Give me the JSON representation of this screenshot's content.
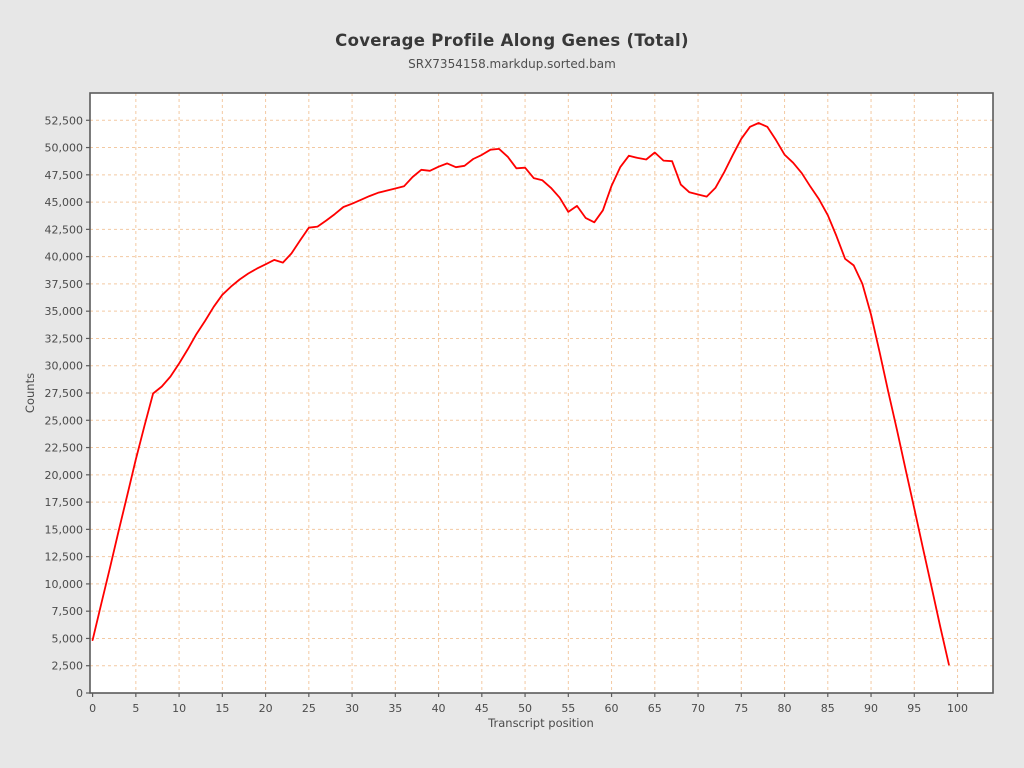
{
  "chart_data": {
    "type": "line",
    "title": "Coverage Profile Along Genes (Total)",
    "subtitle": "SRX7354158.markdup.sorted.bam",
    "xlabel": "Transcript position",
    "ylabel": "Counts",
    "legend": "none",
    "grid": {
      "style": "dashed",
      "color": "#f3c9a2"
    },
    "xlim": [
      -0.3,
      104.1
    ],
    "ylim": [
      0,
      55000
    ],
    "x_ticks": [
      0,
      5,
      10,
      15,
      20,
      25,
      30,
      35,
      40,
      45,
      50,
      55,
      60,
      65,
      70,
      75,
      80,
      85,
      90,
      95,
      100
    ],
    "y_ticks": [
      0,
      2500,
      5000,
      7500,
      10000,
      12500,
      15000,
      17500,
      20000,
      22500,
      25000,
      27500,
      30000,
      32500,
      35000,
      37500,
      40000,
      42500,
      45000,
      47500,
      50000,
      52500
    ],
    "x": [
      0,
      1,
      2,
      3,
      4,
      5,
      6,
      7,
      8,
      9,
      10,
      11,
      12,
      13,
      14,
      15,
      16,
      17,
      18,
      19,
      20,
      21,
      22,
      23,
      24,
      25,
      26,
      27,
      28,
      29,
      30,
      31,
      32,
      33,
      34,
      35,
      36,
      37,
      38,
      39,
      40,
      41,
      42,
      43,
      44,
      45,
      46,
      47,
      48,
      49,
      50,
      51,
      52,
      53,
      54,
      55,
      56,
      57,
      58,
      59,
      60,
      61,
      62,
      63,
      64,
      65,
      66,
      67,
      68,
      69,
      70,
      71,
      72,
      73,
      74,
      75,
      76,
      77,
      78,
      79,
      80,
      81,
      82,
      83,
      84,
      85,
      86,
      87,
      88,
      89,
      90,
      91,
      92,
      93,
      94,
      95,
      96,
      97,
      98,
      99
    ],
    "series": [
      {
        "name": "SRX7354158.markdup.sorted.bam",
        "color": "#ff0000",
        "values": [
          4850,
          8150,
          11450,
          14800,
          18100,
          21400,
          24500,
          27450,
          28100,
          29000,
          30200,
          31500,
          32900,
          34100,
          35400,
          36500,
          37250,
          37900,
          38450,
          38900,
          39300,
          39700,
          39450,
          40300,
          41500,
          42650,
          42750,
          43300,
          43900,
          44550,
          44850,
          45200,
          45550,
          45850,
          46050,
          46250,
          46450,
          47300,
          47960,
          47870,
          48240,
          48550,
          48200,
          48330,
          48950,
          49330,
          49800,
          49880,
          49150,
          48100,
          48150,
          47200,
          47000,
          46300,
          45400,
          44100,
          44650,
          43550,
          43150,
          44250,
          46500,
          48200,
          49250,
          49050,
          48900,
          49550,
          48800,
          48750,
          46600,
          45900,
          45700,
          45500,
          46300,
          47700,
          49300,
          50800,
          51900,
          52250,
          51900,
          50700,
          49350,
          48600,
          47650,
          46400,
          45250,
          43800,
          41900,
          39800,
          39200,
          37500,
          34700,
          31200,
          27600,
          24100,
          20500,
          16900,
          13300,
          9700,
          6100,
          2600
        ]
      }
    ]
  },
  "colors": {
    "figure_bg": "#e7e7e7",
    "plot_bg": "#ffffff",
    "axis_frame": "#5b5b5b",
    "tick_mark": "#5b5b5b",
    "tick_text": "#4b4b4b",
    "title_text": "#383838",
    "subtitle_text": "#4f4f4f"
  }
}
